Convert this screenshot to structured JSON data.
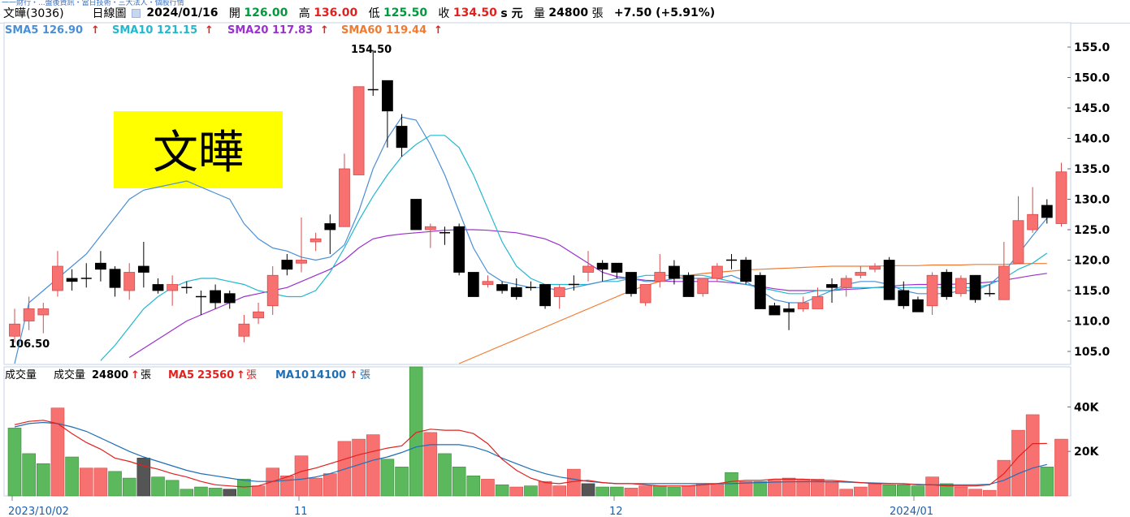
{
  "header": {
    "breadcrumb": "一一財行・...盤後資訊・當日技術・三大法人・個股行情",
    "stock_name": "文曄(3036)",
    "chart_type": "日線圖",
    "date": "2024/01/16",
    "open_label": "開",
    "open": "126.00",
    "high_label": "高",
    "high": "136.00",
    "low_label": "低",
    "low": "125.50",
    "close_label": "收",
    "close": "134.50",
    "unit": "s 元",
    "volume_label": "量",
    "volume": "24800",
    "volume_unit": "張",
    "change": "+7.50 (+5.91%)"
  },
  "sma": [
    {
      "label": "SMA5",
      "value": "126.90",
      "color": "#4a8fd6"
    },
    {
      "label": "SMA10",
      "value": "121.15",
      "color": "#22b8cf"
    },
    {
      "label": "SMA20",
      "value": "117.83",
      "color": "#9b30d0"
    },
    {
      "label": "SMA60",
      "value": "119.44",
      "color": "#f07a32"
    }
  ],
  "stamp": {
    "text": "文曄",
    "bg": "#ffff00"
  },
  "price_axis": {
    "ticks": [
      "155.0",
      "150.0",
      "145.0",
      "140.0",
      "135.0",
      "130.0",
      "125.0",
      "120.0",
      "115.0",
      "110.0",
      "105.0"
    ]
  },
  "annotations": {
    "high_mark": "154.50",
    "low_mark": "106.50"
  },
  "volume_panel": {
    "title": "成交量",
    "vol_label": "成交量",
    "vol_value": "24800",
    "vol_unit": "張",
    "ma5_label": "MA5",
    "ma5_value": "23560",
    "ma5_unit": "張",
    "ma10_label": "MA10",
    "ma10_value": "14100",
    "ma10_unit": "張",
    "ticks": [
      "40K",
      "20K"
    ]
  },
  "date_axis": [
    "2023/10/02",
    "11",
    "12",
    "2024/01"
  ],
  "colors": {
    "up": "#f87171",
    "down": "#000000",
    "vol_up": "#f87171",
    "vol_down": "#5cb85c",
    "vol_flat": "#555555",
    "arrow": "#e0211e"
  },
  "chart_data": {
    "type": "candlestick",
    "ylim": [
      103.0,
      159.0
    ],
    "volume_ylim": [
      0,
      58000
    ],
    "candles": [
      [
        107.5,
        109.5,
        106.5,
        112.0,
        "u"
      ],
      [
        110.0,
        112.0,
        108.5,
        114.0,
        "u"
      ],
      [
        111.0,
        112.0,
        108.0,
        113.0,
        "u"
      ],
      [
        115.0,
        119.0,
        114.0,
        121.5,
        "u"
      ],
      [
        117.0,
        116.5,
        115.0,
        118.5,
        "d"
      ],
      [
        117.0,
        117.0,
        115.5,
        119.5,
        "f"
      ],
      [
        119.5,
        118.5,
        116.5,
        121.5,
        "d"
      ],
      [
        118.5,
        115.5,
        114.0,
        119.0,
        "d"
      ],
      [
        115.0,
        118.0,
        113.5,
        119.5,
        "u"
      ],
      [
        119.0,
        118.0,
        115.5,
        123.0,
        "d"
      ],
      [
        116.0,
        115.0,
        114.5,
        117.0,
        "d"
      ],
      [
        115.0,
        116.0,
        112.5,
        117.5,
        "u"
      ],
      [
        115.5,
        115.5,
        114.5,
        116.5,
        "f"
      ],
      [
        114.0,
        114.0,
        111.0,
        115.0,
        "f"
      ],
      [
        115.0,
        113.0,
        112.0,
        116.0,
        "d"
      ],
      [
        114.5,
        113.0,
        112.0,
        115.0,
        "d"
      ],
      [
        107.5,
        109.5,
        106.5,
        111.0,
        "u"
      ],
      [
        110.5,
        111.5,
        109.5,
        113.0,
        "u"
      ],
      [
        112.5,
        117.5,
        111.0,
        119.0,
        "u"
      ],
      [
        120.0,
        118.5,
        117.5,
        121.0,
        "d"
      ],
      [
        119.5,
        120.0,
        118.0,
        127.0,
        "u"
      ],
      [
        123.0,
        123.5,
        121.5,
        124.5,
        "u"
      ],
      [
        126.0,
        125.0,
        121.0,
        127.5,
        "d"
      ],
      [
        125.5,
        135.0,
        125.5,
        137.5,
        "u"
      ],
      [
        134.0,
        148.5,
        134.0,
        148.5,
        "u"
      ],
      [
        148.5,
        148.0,
        147.0,
        154.5,
        "f"
      ],
      [
        149.5,
        144.5,
        138.5,
        149.5,
        "d"
      ],
      [
        142.0,
        138.5,
        137.0,
        144.0,
        "d"
      ],
      [
        130.0,
        125.0,
        125.0,
        130.0,
        "d"
      ],
      [
        125.0,
        125.5,
        122.0,
        126.0,
        "u"
      ],
      [
        124.5,
        124.5,
        122.5,
        125.5,
        "f"
      ],
      [
        125.5,
        118.0,
        117.5,
        126.0,
        "d"
      ],
      [
        118.0,
        114.0,
        114.0,
        118.0,
        "d"
      ],
      [
        116.0,
        116.5,
        115.5,
        117.5,
        "u"
      ],
      [
        116.0,
        115.0,
        114.5,
        116.5,
        "d"
      ],
      [
        115.5,
        114.0,
        113.5,
        117.0,
        "d"
      ],
      [
        115.5,
        115.5,
        115.0,
        116.5,
        "f"
      ],
      [
        116.0,
        112.5,
        112.0,
        116.0,
        "d"
      ],
      [
        114.0,
        115.5,
        112.0,
        116.0,
        "u"
      ],
      [
        116.0,
        116.0,
        115.0,
        117.5,
        "f"
      ],
      [
        118.0,
        119.0,
        116.5,
        121.5,
        "u"
      ],
      [
        119.5,
        118.5,
        116.5,
        120.0,
        "d"
      ],
      [
        119.5,
        118.0,
        117.0,
        119.5,
        "d"
      ],
      [
        118.0,
        114.5,
        114.0,
        118.0,
        "d"
      ],
      [
        113.0,
        116.0,
        112.5,
        116.0,
        "u"
      ],
      [
        116.5,
        118.0,
        115.5,
        121.0,
        "u"
      ],
      [
        119.0,
        117.0,
        116.0,
        120.0,
        "d"
      ],
      [
        117.5,
        114.0,
        114.0,
        118.0,
        "d"
      ],
      [
        114.5,
        117.0,
        114.0,
        117.0,
        "u"
      ],
      [
        117.0,
        119.0,
        116.5,
        119.5,
        "u"
      ],
      [
        120.0,
        120.0,
        118.5,
        121.0,
        "f"
      ],
      [
        120.0,
        116.5,
        116.0,
        120.5,
        "d"
      ],
      [
        117.5,
        112.0,
        112.0,
        118.0,
        "d"
      ],
      [
        112.5,
        111.0,
        111.0,
        113.0,
        "d"
      ],
      [
        112.0,
        111.5,
        108.5,
        113.0,
        "d"
      ],
      [
        112.0,
        113.0,
        111.5,
        114.0,
        "u"
      ],
      [
        112.0,
        114.0,
        112.0,
        115.5,
        "u"
      ],
      [
        116.0,
        115.5,
        113.0,
        117.0,
        "d"
      ],
      [
        115.5,
        117.0,
        114.0,
        117.5,
        "u"
      ],
      [
        117.5,
        118.0,
        117.0,
        119.0,
        "u"
      ],
      [
        118.5,
        119.0,
        118.0,
        119.5,
        "u"
      ],
      [
        120.0,
        113.5,
        113.5,
        120.5,
        "d"
      ],
      [
        115.0,
        112.5,
        112.0,
        116.5,
        "d"
      ],
      [
        113.5,
        111.5,
        111.5,
        114.0,
        "d"
      ],
      [
        112.5,
        117.5,
        111.0,
        118.0,
        "u"
      ],
      [
        118.0,
        114.0,
        113.5,
        118.5,
        "d"
      ],
      [
        114.5,
        117.0,
        114.0,
        117.5,
        "u"
      ],
      [
        117.5,
        113.5,
        113.0,
        117.5,
        "d"
      ],
      [
        114.5,
        114.5,
        114.0,
        116.0,
        "f"
      ],
      [
        113.5,
        119.0,
        113.5,
        123.0,
        "u"
      ],
      [
        119.5,
        126.5,
        119.5,
        130.5,
        "u"
      ],
      [
        125.0,
        127.5,
        124.5,
        132.0,
        "u"
      ],
      [
        129.0,
        127.0,
        126.0,
        130.0,
        "d"
      ],
      [
        126.0,
        134.5,
        125.5,
        136.0,
        "u"
      ]
    ],
    "volumes": [
      [
        30500,
        "d"
      ],
      [
        19000,
        "d"
      ],
      [
        14500,
        "d"
      ],
      [
        39500,
        "u"
      ],
      [
        17500,
        "d"
      ],
      [
        12500,
        "u"
      ],
      [
        12500,
        "u"
      ],
      [
        11000,
        "d"
      ],
      [
        8000,
        "d"
      ],
      [
        17000,
        "f"
      ],
      [
        8500,
        "d"
      ],
      [
        7000,
        "d"
      ],
      [
        3000,
        "d"
      ],
      [
        4000,
        "d"
      ],
      [
        3500,
        "d"
      ],
      [
        3000,
        "f"
      ],
      [
        7500,
        "d"
      ],
      [
        4500,
        "u"
      ],
      [
        12500,
        "u"
      ],
      [
        9000,
        "u"
      ],
      [
        18000,
        "u"
      ],
      [
        8000,
        "u"
      ],
      [
        10000,
        "u"
      ],
      [
        24500,
        "u"
      ],
      [
        25500,
        "u"
      ],
      [
        27500,
        "u"
      ],
      [
        16500,
        "d"
      ],
      [
        13000,
        "d"
      ],
      [
        58000,
        "d"
      ],
      [
        28500,
        "u"
      ],
      [
        19000,
        "d"
      ],
      [
        13000,
        "d"
      ],
      [
        9000,
        "d"
      ],
      [
        7500,
        "u"
      ],
      [
        5000,
        "d"
      ],
      [
        4000,
        "u"
      ],
      [
        4500,
        "d"
      ],
      [
        6500,
        "u"
      ],
      [
        4500,
        "u"
      ],
      [
        12000,
        "u"
      ],
      [
        5500,
        "f"
      ],
      [
        4000,
        "d"
      ],
      [
        4000,
        "d"
      ],
      [
        3500,
        "u"
      ],
      [
        4500,
        "u"
      ],
      [
        4500,
        "d"
      ],
      [
        4000,
        "d"
      ],
      [
        4500,
        "u"
      ],
      [
        5500,
        "u"
      ],
      [
        5500,
        "u"
      ],
      [
        10500,
        "d"
      ],
      [
        6500,
        "u"
      ],
      [
        6500,
        "d"
      ],
      [
        7000,
        "u"
      ],
      [
        8000,
        "u"
      ],
      [
        7500,
        "u"
      ],
      [
        7500,
        "u"
      ],
      [
        6500,
        "u"
      ],
      [
        3000,
        "u"
      ],
      [
        4000,
        "u"
      ],
      [
        5500,
        "u"
      ],
      [
        5000,
        "d"
      ],
      [
        5000,
        "d"
      ],
      [
        4500,
        "d"
      ],
      [
        8500,
        "u"
      ],
      [
        5500,
        "d"
      ],
      [
        4000,
        "u"
      ],
      [
        3000,
        "u"
      ],
      [
        2500,
        "u"
      ],
      [
        16000,
        "u"
      ],
      [
        29500,
        "u"
      ],
      [
        36500,
        "u"
      ],
      [
        13000,
        "d"
      ],
      [
        25500,
        "u"
      ]
    ],
    "sma5_line": [
      103,
      113,
      115,
      117,
      119,
      121,
      124,
      127,
      130,
      131.5,
      132,
      132.5,
      133,
      132,
      131,
      130,
      126,
      123.5,
      122,
      121.5,
      120.5,
      120,
      120.5,
      122.5,
      128,
      135,
      140,
      143.5,
      143,
      139,
      134,
      128,
      122,
      118,
      116.5,
      116,
      115.5,
      115.5,
      115,
      115.5,
      116,
      116.5,
      117,
      117,
      116.5,
      116.5,
      117,
      117,
      117,
      117,
      117.5,
      116.5,
      115,
      113.5,
      113,
      113,
      114,
      115,
      116,
      116.5,
      116.5,
      116,
      115,
      114.5,
      114.5,
      114.5,
      115,
      115,
      116,
      118,
      121,
      124,
      126.9
    ],
    "sma10_line": [
      null,
      null,
      null,
      null,
      null,
      null,
      103.5,
      106,
      109,
      112,
      114,
      115.5,
      116.5,
      117,
      117,
      116.5,
      116,
      115,
      114.5,
      114,
      114,
      115,
      118,
      122,
      126.5,
      130.5,
      134,
      137,
      139,
      140.5,
      140.5,
      138.5,
      134,
      128.5,
      123,
      119,
      117,
      116,
      116,
      116,
      116,
      116.5,
      116.5,
      117,
      117.5,
      117.5,
      117.5,
      117.5,
      117.5,
      117,
      116.5,
      116,
      115.5,
      115,
      114.5,
      114.5,
      115,
      115,
      115.5,
      115.5,
      115.5,
      115.5,
      115.5,
      115.5,
      115.5,
      115.5,
      115.5,
      115.5,
      116,
      117,
      118.5,
      119.5,
      121.15
    ],
    "sma20_line": [
      null,
      null,
      null,
      null,
      null,
      null,
      null,
      null,
      104,
      105.5,
      107,
      108.5,
      110,
      111,
      112,
      113,
      114,
      114.5,
      115,
      115.5,
      116.5,
      117.5,
      118.5,
      120,
      122,
      123.5,
      124,
      124.3,
      124.5,
      124.7,
      124.9,
      125,
      125,
      124.9,
      124.7,
      124.5,
      124,
      123.5,
      122.5,
      121,
      119.5,
      118,
      117.3,
      117,
      116.7,
      116.6,
      116.5,
      116.5,
      116.5,
      116.5,
      116.3,
      116,
      115.7,
      115.3,
      115,
      115,
      115,
      115,
      115.2,
      115.3,
      115.5,
      115.7,
      115.9,
      116,
      116,
      116,
      116.1,
      116.2,
      116.4,
      116.7,
      117.1,
      117.5,
      117.83
    ],
    "sma60_line": [
      null,
      null,
      null,
      null,
      null,
      null,
      null,
      null,
      null,
      null,
      null,
      null,
      null,
      null,
      null,
      null,
      null,
      null,
      null,
      null,
      null,
      null,
      null,
      null,
      null,
      null,
      null,
      null,
      null,
      null,
      null,
      103,
      104,
      105,
      106,
      107,
      108,
      109,
      110,
      111,
      112,
      113,
      114,
      115,
      115.8,
      116.5,
      117,
      117.5,
      117.8,
      118,
      118.2,
      118.4,
      118.5,
      118.6,
      118.7,
      118.8,
      118.9,
      119,
      119,
      119,
      119,
      119.1,
      119.1,
      119.1,
      119.2,
      119.2,
      119.2,
      119.3,
      119.3,
      119.3,
      119.4,
      119.44,
      119.44
    ],
    "vol_ma5_line": [
      32000,
      33500,
      34000,
      32500,
      28000,
      24000,
      21000,
      17000,
      15500,
      13500,
      12000,
      10000,
      8500,
      6500,
      5000,
      4500,
      4000,
      4500,
      6500,
      8500,
      11000,
      12500,
      14500,
      16500,
      18500,
      20000,
      21500,
      22500,
      28500,
      30000,
      29500,
      29500,
      28000,
      23500,
      16500,
      11500,
      8000,
      6000,
      5500,
      6500,
      7000,
      6000,
      5500,
      5500,
      5000,
      4500,
      4500,
      4500,
      5000,
      5500,
      6500,
      7000,
      7000,
      7500,
      7500,
      7500,
      7000,
      7000,
      6500,
      6000,
      5500,
      5500,
      5500,
      5000,
      5000,
      4500,
      4500,
      4500,
      5000,
      10000,
      17500,
      23500,
      23560
    ],
    "vol_ma10_line": [
      31000,
      32500,
      33000,
      32500,
      31000,
      29000,
      26000,
      23000,
      20000,
      17500,
      15500,
      13500,
      11500,
      10000,
      9000,
      8000,
      7000,
      6500,
      6500,
      7000,
      7500,
      8500,
      10000,
      12000,
      14000,
      16000,
      17500,
      19500,
      22000,
      23000,
      23000,
      23000,
      22000,
      20000,
      17000,
      14500,
      12000,
      10000,
      8500,
      7500,
      6500,
      6000,
      5500,
      5500,
      5500,
      5500,
      5500,
      5500,
      5500,
      5500,
      5500,
      5800,
      6000,
      6200,
      6300,
      6400,
      6400,
      6300,
      6200,
      6000,
      5800,
      5600,
      5400,
      5200,
      5000,
      5000,
      5000,
      5000,
      5200,
      7000,
      10000,
      12500,
      14100
    ]
  }
}
